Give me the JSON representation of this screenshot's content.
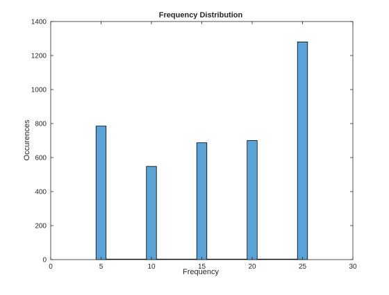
{
  "chart_data": {
    "type": "bar",
    "title": "Frequency Distribution",
    "xlabel": "Frequency",
    "ylabel": "Occurences",
    "xlim": [
      0,
      30
    ],
    "ylim": [
      0,
      1400
    ],
    "xticks": [
      0,
      5,
      10,
      15,
      20,
      25,
      30
    ],
    "yticks": [
      0,
      200,
      400,
      600,
      800,
      1000,
      1200,
      1400
    ],
    "bar_width": 1,
    "bars": [
      {
        "x": 5,
        "value": 785
      },
      {
        "x": 10,
        "value": 548
      },
      {
        "x": 15,
        "value": 687
      },
      {
        "x": 20,
        "value": 700
      },
      {
        "x": 25,
        "value": 1280
      }
    ],
    "baseline_segments": [
      [
        5.5,
        9.5
      ],
      [
        10.5,
        14.5
      ],
      [
        15.5,
        19.5
      ],
      [
        20.5,
        24.5
      ]
    ],
    "bar_color": "#5ba2d7",
    "bar_edge_color": "#000000",
    "grid": false,
    "box": true
  }
}
